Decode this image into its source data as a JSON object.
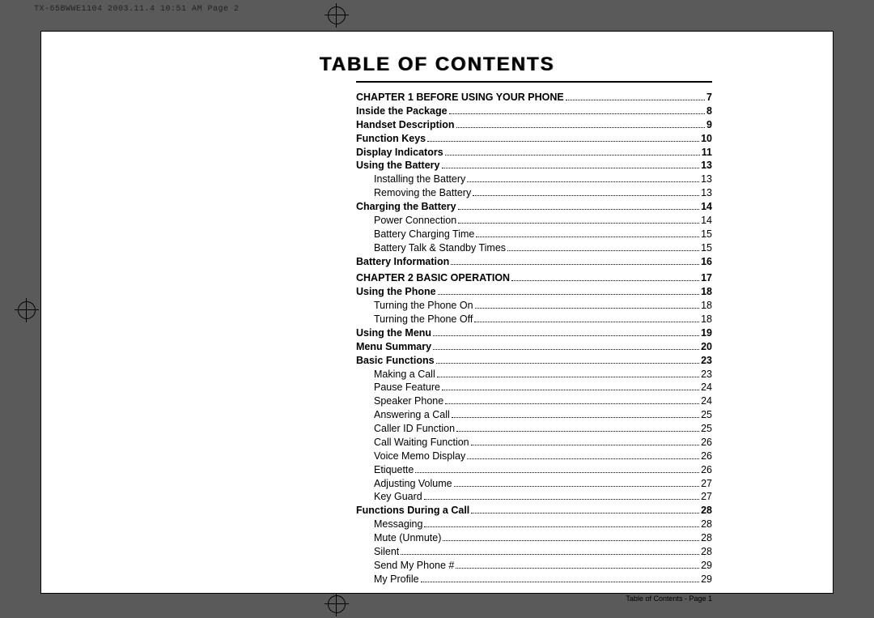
{
  "header": "TX-65BWWE1104  2003.11.4  10:51 AM  Page 2",
  "title": "TABLE OF CONTENTS",
  "footer": "Table of Contents - Page 1",
  "colors": {
    "page_bg": "#ffffff",
    "outer_bg": "#5a5a5a",
    "text": "#000000"
  },
  "toc": [
    {
      "label": "CHAPTER 1 BEFORE USING YOUR PHONE",
      "page": "7",
      "cls": "chap"
    },
    {
      "label": "Inside the Package",
      "page": "8",
      "cls": "sec"
    },
    {
      "label": "Handset Description",
      "page": "9",
      "cls": "sec"
    },
    {
      "label": "Function Keys",
      "page": "10",
      "cls": "sec"
    },
    {
      "label": "Display Indicators",
      "page": "11",
      "cls": "sec"
    },
    {
      "label": "Using the Battery",
      "page": "13",
      "cls": "sec"
    },
    {
      "label": "Installing the Battery",
      "page": "13",
      "cls": "sub"
    },
    {
      "label": "Removing the Battery",
      "page": "13",
      "cls": "sub"
    },
    {
      "label": "Charging the Battery",
      "page": "14",
      "cls": "sec"
    },
    {
      "label": "Power Connection",
      "page": "14",
      "cls": "sub"
    },
    {
      "label": "Battery Charging Time",
      "page": "15",
      "cls": "sub"
    },
    {
      "label": "Battery Talk & Standby Times",
      "page": "15",
      "cls": "sub"
    },
    {
      "label": "Battery Information",
      "page": "16",
      "cls": "sec"
    },
    {
      "label": "CHAPTER 2 BASIC OPERATION",
      "page": "17",
      "cls": "chap"
    },
    {
      "label": "Using the Phone",
      "page": "18",
      "cls": "sec"
    },
    {
      "label": "Turning the Phone On",
      "page": "18",
      "cls": "sub"
    },
    {
      "label": "Turning the Phone Off",
      "page": "18",
      "cls": "sub"
    },
    {
      "label": "Using the Menu",
      "page": "19",
      "cls": "sec"
    },
    {
      "label": "Menu Summary",
      "page": "20",
      "cls": "sec"
    },
    {
      "label": "Basic Functions",
      "page": "23",
      "cls": "sec"
    },
    {
      "label": "Making a Call",
      "page": "23",
      "cls": "sub"
    },
    {
      "label": "Pause Feature",
      "page": "24",
      "cls": "sub"
    },
    {
      "label": "Speaker Phone",
      "page": "24",
      "cls": "sub"
    },
    {
      "label": "Answering a Call",
      "page": "25",
      "cls": "sub"
    },
    {
      "label": "Caller ID Function",
      "page": "25",
      "cls": "sub"
    },
    {
      "label": "Call Waiting Function",
      "page": "26",
      "cls": "sub"
    },
    {
      "label": "Voice Memo Display",
      "page": "26",
      "cls": "sub"
    },
    {
      "label": "Etiquette",
      "page": "26",
      "cls": "sub"
    },
    {
      "label": "Adjusting Volume",
      "page": "27",
      "cls": "sub"
    },
    {
      "label": "Key Guard",
      "page": "27",
      "cls": "sub"
    },
    {
      "label": "Functions During a Call",
      "page": "28",
      "cls": "sec"
    },
    {
      "label": "Messaging",
      "page": "28",
      "cls": "sub"
    },
    {
      "label": "Mute (Unmute)",
      "page": "28",
      "cls": "sub"
    },
    {
      "label": "Silent",
      "page": "28",
      "cls": "sub"
    },
    {
      "label": "Send My Phone #",
      "page": "29",
      "cls": "sub"
    },
    {
      "label": "My Profile",
      "page": "29",
      "cls": "sub"
    }
  ]
}
